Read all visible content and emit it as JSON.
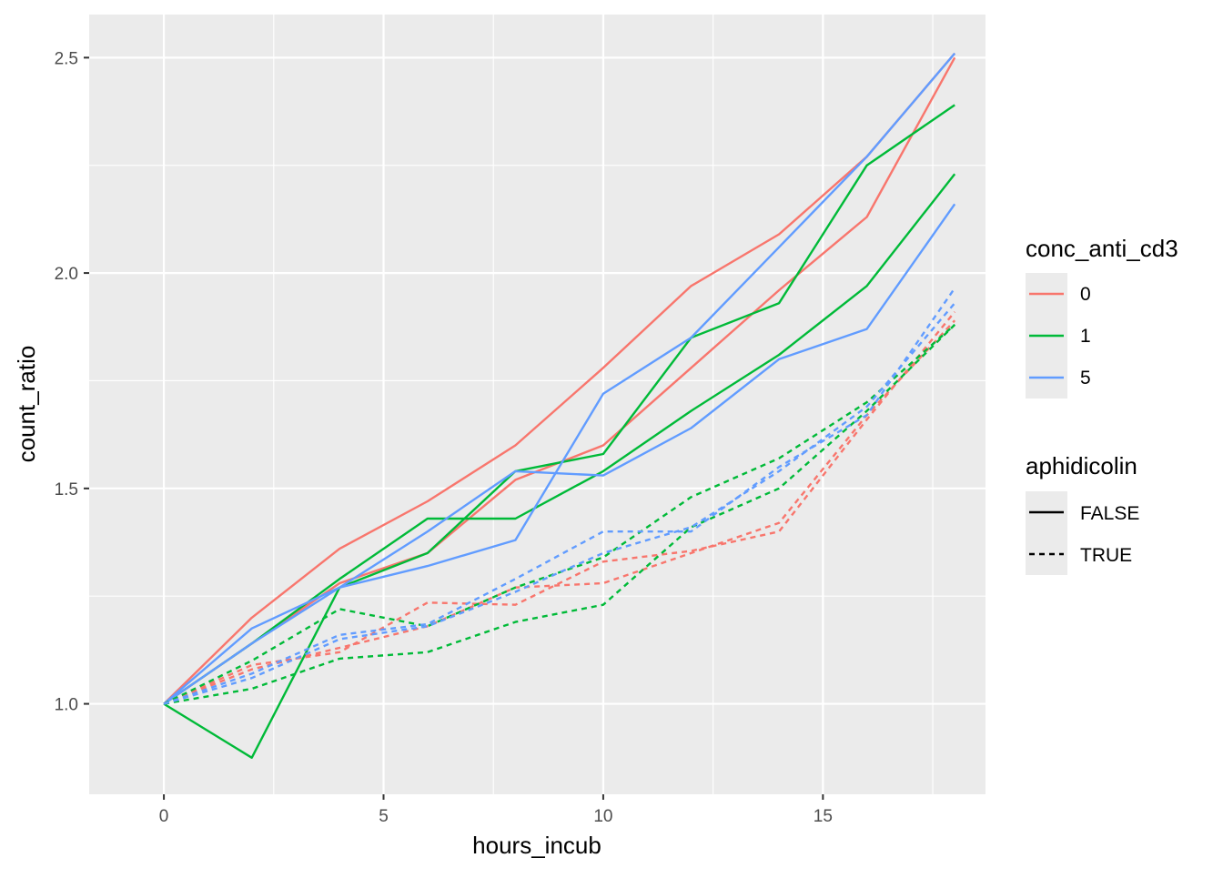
{
  "chart_data": {
    "type": "line",
    "xlabel": "hours_incub",
    "ylabel": "count_ratio",
    "xlim": [
      -1.7,
      18.7
    ],
    "ylim": [
      0.79,
      2.6
    ],
    "x_ticks": [
      0,
      5,
      10,
      15
    ],
    "x_tick_labels": [
      "0",
      "5",
      "10",
      "15"
    ],
    "y_ticks": [
      1.0,
      1.5,
      2.0,
      2.5
    ],
    "y_tick_labels": [
      "1.0",
      "1.5",
      "2.0",
      "2.5"
    ],
    "grid": true,
    "legend_position": "right",
    "colors": {
      "0": "#F8766D",
      "1": "#00BA38",
      "5": "#619CFF"
    },
    "legends": [
      {
        "title": "conc_anti_cd3",
        "kind": "color",
        "entries": [
          {
            "label": "0",
            "color": "#F8766D"
          },
          {
            "label": "1",
            "color": "#00BA38"
          },
          {
            "label": "5",
            "color": "#619CFF"
          }
        ]
      },
      {
        "title": "aphidicolin",
        "kind": "linetype",
        "entries": [
          {
            "label": "FALSE",
            "linetype": "solid"
          },
          {
            "label": "TRUE",
            "linetype": "dashed"
          }
        ]
      }
    ],
    "series": [
      {
        "conc_anti_cd3": "0",
        "aphidicolin": "FALSE",
        "color": "#F8766D",
        "dashed": false,
        "x": [
          0,
          2,
          4,
          6,
          8,
          10,
          12,
          14,
          16,
          18
        ],
        "y": [
          1.0,
          1.2,
          1.36,
          1.47,
          1.6,
          1.78,
          1.97,
          2.09,
          2.27,
          2.51
        ]
      },
      {
        "conc_anti_cd3": "0",
        "aphidicolin": "FALSE",
        "color": "#F8766D",
        "dashed": false,
        "x": [
          0,
          2,
          4,
          6,
          8,
          10,
          12,
          14,
          16,
          18
        ],
        "y": [
          1.0,
          1.14,
          1.28,
          1.35,
          1.52,
          1.6,
          1.78,
          1.96,
          2.13,
          2.5
        ]
      },
      {
        "conc_anti_cd3": "1",
        "aphidicolin": "FALSE",
        "color": "#00BA38",
        "dashed": false,
        "x": [
          0,
          2,
          4,
          6,
          8,
          10,
          12,
          14,
          16,
          18
        ],
        "y": [
          1.0,
          0.875,
          1.27,
          1.35,
          1.54,
          1.58,
          1.85,
          1.93,
          2.25,
          2.39
        ]
      },
      {
        "conc_anti_cd3": "1",
        "aphidicolin": "FALSE",
        "color": "#00BA38",
        "dashed": false,
        "x": [
          0,
          2,
          4,
          6,
          8,
          10,
          12,
          14,
          16,
          18
        ],
        "y": [
          1.0,
          1.14,
          1.29,
          1.43,
          1.43,
          1.54,
          1.68,
          1.81,
          1.97,
          2.23
        ]
      },
      {
        "conc_anti_cd3": "5",
        "aphidicolin": "FALSE",
        "color": "#619CFF",
        "dashed": false,
        "x": [
          0,
          2,
          4,
          6,
          8,
          10,
          12,
          14,
          16,
          18
        ],
        "y": [
          1.0,
          1.175,
          1.27,
          1.32,
          1.38,
          1.72,
          1.85,
          2.06,
          2.27,
          2.51
        ]
      },
      {
        "conc_anti_cd3": "5",
        "aphidicolin": "FALSE",
        "color": "#619CFF",
        "dashed": false,
        "x": [
          0,
          2,
          4,
          6,
          8,
          10,
          12,
          14,
          16,
          18
        ],
        "y": [
          1.0,
          1.14,
          1.27,
          1.4,
          1.54,
          1.53,
          1.64,
          1.8,
          1.87,
          2.16
        ]
      },
      {
        "conc_anti_cd3": "0",
        "aphidicolin": "TRUE",
        "color": "#F8766D",
        "dashed": true,
        "x": [
          0,
          2,
          4,
          6,
          8,
          10,
          12,
          14,
          16,
          18
        ],
        "y": [
          1.0,
          1.09,
          1.12,
          1.235,
          1.23,
          1.33,
          1.355,
          1.4,
          1.66,
          1.91
        ]
      },
      {
        "conc_anti_cd3": "0",
        "aphidicolin": "TRUE",
        "color": "#F8766D",
        "dashed": true,
        "x": [
          0,
          2,
          4,
          6,
          8,
          10,
          12,
          14,
          16,
          18
        ],
        "y": [
          1.0,
          1.08,
          1.13,
          1.18,
          1.27,
          1.28,
          1.35,
          1.42,
          1.67,
          1.89
        ]
      },
      {
        "conc_anti_cd3": "1",
        "aphidicolin": "TRUE",
        "color": "#00BA38",
        "dashed": true,
        "x": [
          0,
          2,
          4,
          6,
          8,
          10,
          12,
          14,
          16,
          18
        ],
        "y": [
          1.0,
          1.1,
          1.22,
          1.18,
          1.27,
          1.34,
          1.48,
          1.57,
          1.7,
          1.88
        ]
      },
      {
        "conc_anti_cd3": "1",
        "aphidicolin": "TRUE",
        "color": "#00BA38",
        "dashed": true,
        "x": [
          0,
          2,
          4,
          6,
          8,
          10,
          12,
          14,
          16,
          18
        ],
        "y": [
          1.0,
          1.035,
          1.105,
          1.12,
          1.19,
          1.23,
          1.41,
          1.5,
          1.68,
          1.88
        ]
      },
      {
        "conc_anti_cd3": "5",
        "aphidicolin": "TRUE",
        "color": "#619CFF",
        "dashed": true,
        "x": [
          0,
          2,
          4,
          6,
          8,
          10,
          12,
          14,
          16,
          18
        ],
        "y": [
          1.0,
          1.07,
          1.16,
          1.185,
          1.29,
          1.4,
          1.4,
          1.55,
          1.67,
          1.965
        ]
      },
      {
        "conc_anti_cd3": "5",
        "aphidicolin": "TRUE",
        "color": "#619CFF",
        "dashed": true,
        "x": [
          0,
          2,
          4,
          6,
          8,
          10,
          12,
          14,
          16,
          18
        ],
        "y": [
          1.0,
          1.06,
          1.15,
          1.18,
          1.26,
          1.35,
          1.41,
          1.54,
          1.69,
          1.93
        ]
      }
    ]
  }
}
